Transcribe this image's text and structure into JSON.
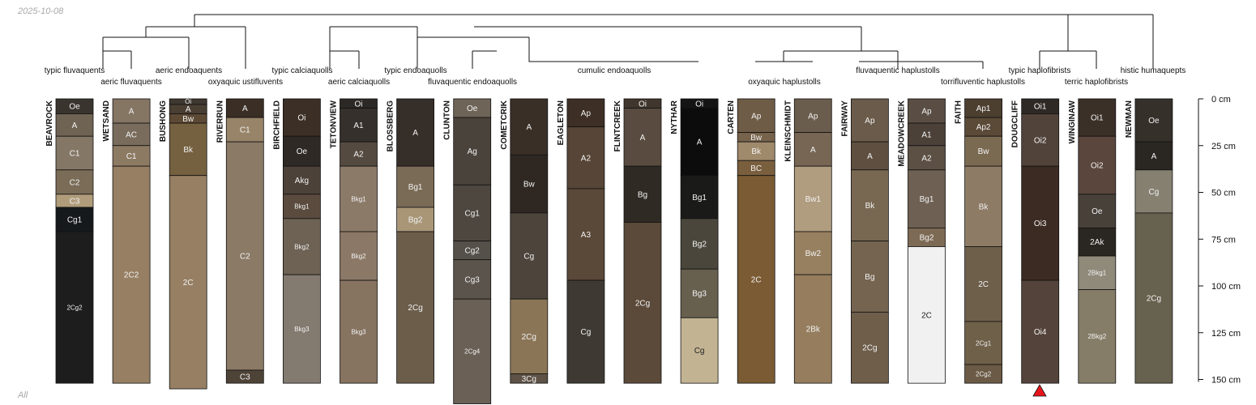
{
  "header": {
    "date": "2025-10-08"
  },
  "footer": {
    "label": "All"
  },
  "depth_axis": {
    "unit": "cm",
    "max_depth": 150,
    "ticks": [
      0,
      25,
      50,
      75,
      100,
      125,
      150
    ]
  },
  "taxonomy": {
    "typic_fluvaquents": "typic fluvaquents",
    "aeric_fluvaquents": "aeric fluvaquents",
    "aeric_endoaquents": "aeric endoaquents",
    "oxyaquic_ustifluvents": "oxyaquic ustifluvents",
    "typic_calciaquolls": "typic calciaquolls",
    "aeric_calciaquolls": "aeric calciaquolls",
    "typic_endoaquolls": "typic endoaquolls",
    "fluvaquentic_endoaquolls": "fluvaquentic endoaquolls",
    "cumulic_endoaquolls": "cumulic endoaquolls",
    "oxyaquic_haplustolls": "oxyaquic haplustolls",
    "fluvaquentic_haplustolls": "fluvaquentic haplustolls",
    "torrifluventic_haplustolls": "torrifluventic haplustolls",
    "typic_haplofibrists": "typic haplofibrists",
    "terric_haplofibrists": "terric haplofibrists",
    "histic_humaquepts": "histic humaquepts"
  },
  "marker": {
    "profile": "DOUGCLIFF",
    "color": "#e8141b"
  },
  "profiles": [
    {
      "name": "BEAVROCK",
      "horizons": [
        {
          "name": "Oe",
          "top": 0,
          "bottom": 8,
          "color": "#3a342f"
        },
        {
          "name": "A",
          "top": 8,
          "bottom": 20,
          "color": "#6f6454"
        },
        {
          "name": "C1",
          "top": 20,
          "bottom": 38,
          "color": "#857766"
        },
        {
          "name": "C2",
          "top": 38,
          "bottom": 51,
          "color": "#7a6c57"
        },
        {
          "name": "C3",
          "top": 51,
          "bottom": 58,
          "color": "#b09c7a"
        },
        {
          "name": "Cg1",
          "top": 58,
          "bottom": 71,
          "color": "#16191c"
        },
        {
          "name": "2Cg2",
          "top": 71,
          "bottom": 152,
          "color": "#1c1d1c"
        }
      ]
    },
    {
      "name": "WETSAND",
      "horizons": [
        {
          "name": "A",
          "top": 0,
          "bottom": 13,
          "color": "#857563"
        },
        {
          "name": "AC",
          "top": 13,
          "bottom": 25,
          "color": "#7a6c5c"
        },
        {
          "name": "C1",
          "top": 25,
          "bottom": 36,
          "color": "#8d7a63"
        },
        {
          "name": "2C2",
          "top": 36,
          "bottom": 152,
          "color": "#977f63"
        }
      ]
    },
    {
      "name": "BUSHONG",
      "horizons": [
        {
          "name": "Oi",
          "top": 0,
          "bottom": 3,
          "color": "#3f3830"
        },
        {
          "name": "A",
          "top": 3,
          "bottom": 8,
          "color": "#4a3f33"
        },
        {
          "name": "Bw",
          "top": 8,
          "bottom": 13,
          "color": "#5d4a35"
        },
        {
          "name": "Bk",
          "top": 13,
          "bottom": 41,
          "color": "#75603f"
        },
        {
          "name": "2C",
          "top": 41,
          "bottom": 155,
          "color": "#977f63"
        }
      ]
    },
    {
      "name": "RIVERRUN",
      "horizons": [
        {
          "name": "A",
          "top": 0,
          "bottom": 10,
          "color": "#3b2e24"
        },
        {
          "name": "C1",
          "top": 10,
          "bottom": 23,
          "color": "#988569"
        },
        {
          "name": "C2",
          "top": 23,
          "bottom": 145,
          "color": "#8b7a66"
        },
        {
          "name": "C3",
          "top": 145,
          "bottom": 152,
          "color": "#4e4337"
        }
      ]
    },
    {
      "name": "BIRCHFIELD",
      "horizons": [
        {
          "name": "Oi",
          "top": 0,
          "bottom": 20,
          "color": "#3c2f25"
        },
        {
          "name": "Oe",
          "top": 20,
          "bottom": 36,
          "color": "#2e2925"
        },
        {
          "name": "Akg",
          "top": 36,
          "bottom": 51,
          "color": "#4c4239"
        },
        {
          "name": "Bkg1",
          "top": 51,
          "bottom": 64,
          "color": "#5a4b3e"
        },
        {
          "name": "Bkg2",
          "top": 64,
          "bottom": 94,
          "color": "#6d6253"
        },
        {
          "name": "Bkg3",
          "top": 94,
          "bottom": 152,
          "color": "#837a70"
        }
      ]
    },
    {
      "name": "TETONVIEW",
      "horizons": [
        {
          "name": "Oi",
          "top": 0,
          "bottom": 5,
          "color": "#2c2825"
        },
        {
          "name": "A1",
          "top": 5,
          "bottom": 23,
          "color": "#35302b"
        },
        {
          "name": "A2",
          "top": 23,
          "bottom": 36,
          "color": "#544a40"
        },
        {
          "name": "Bkg1",
          "top": 36,
          "bottom": 71,
          "color": "#8c7a69"
        },
        {
          "name": "Bkg2",
          "top": 71,
          "bottom": 97,
          "color": "#8b7866"
        },
        {
          "name": "Bkg3",
          "top": 97,
          "bottom": 152,
          "color": "#867360"
        }
      ]
    },
    {
      "name": "BLOSSBERG",
      "horizons": [
        {
          "name": "A",
          "top": 0,
          "bottom": 36,
          "color": "#362e28"
        },
        {
          "name": "Bg1",
          "top": 36,
          "bottom": 58,
          "color": "#7a6b56"
        },
        {
          "name": "Bg2",
          "top": 58,
          "bottom": 71,
          "color": "#a89677"
        },
        {
          "name": "2Cg",
          "top": 71,
          "bottom": 152,
          "color": "#6c5d4b"
        }
      ]
    },
    {
      "name": "CLUNTON",
      "horizons": [
        {
          "name": "Oe",
          "top": 0,
          "bottom": 10,
          "color": "#6e6457"
        },
        {
          "name": "Ag",
          "top": 10,
          "bottom": 46,
          "color": "#4a433b"
        },
        {
          "name": "Cg1",
          "top": 46,
          "bottom": 76,
          "color": "#4d473f"
        },
        {
          "name": "Cg2",
          "top": 76,
          "bottom": 86,
          "color": "#55504a"
        },
        {
          "name": "Cg3",
          "top": 86,
          "bottom": 107,
          "color": "#5b544c"
        },
        {
          "name": "2Cg4",
          "top": 107,
          "bottom": 163,
          "color": "#6a6056"
        }
      ]
    },
    {
      "name": "COMETCRIK",
      "horizons": [
        {
          "name": "A",
          "top": 0,
          "bottom": 30,
          "color": "#3a2f27"
        },
        {
          "name": "Bw",
          "top": 30,
          "bottom": 61,
          "color": "#2f2822"
        },
        {
          "name": "Cg",
          "top": 61,
          "bottom": 107,
          "color": "#4d443c"
        },
        {
          "name": "2Cg",
          "top": 107,
          "bottom": 147,
          "color": "#8b7557"
        },
        {
          "name": "3Cg",
          "top": 147,
          "bottom": 152,
          "color": "#5e5246"
        }
      ]
    },
    {
      "name": "EAGLETON",
      "horizons": [
        {
          "name": "Ap",
          "top": 0,
          "bottom": 15,
          "color": "#3d2f25"
        },
        {
          "name": "A2",
          "top": 15,
          "bottom": 48,
          "color": "#574637"
        },
        {
          "name": "A3",
          "top": 48,
          "bottom": 97,
          "color": "#5a4838"
        },
        {
          "name": "Cg",
          "top": 97,
          "bottom": 152,
          "color": "#3e3a33"
        }
      ]
    },
    {
      "name": "FLINTCREEK",
      "horizons": [
        {
          "name": "Oi",
          "top": 0,
          "bottom": 5,
          "color": "#40362d"
        },
        {
          "name": "A",
          "top": 5,
          "bottom": 36,
          "color": "#594b3f"
        },
        {
          "name": "Bg",
          "top": 36,
          "bottom": 66,
          "color": "#302a25"
        },
        {
          "name": "2Cg",
          "top": 66,
          "bottom": 152,
          "color": "#5b4a39"
        }
      ]
    },
    {
      "name": "NYTHAR",
      "horizons": [
        {
          "name": "Oi",
          "top": 0,
          "bottom": 5,
          "color": "#141414"
        },
        {
          "name": "A",
          "top": 5,
          "bottom": 41,
          "color": "#0c0c0c"
        },
        {
          "name": "Bg1",
          "top": 41,
          "bottom": 64,
          "color": "#1a1a18"
        },
        {
          "name": "Bg2",
          "top": 64,
          "bottom": 91,
          "color": "#4a463c"
        },
        {
          "name": "Bg3",
          "top": 91,
          "bottom": 117,
          "color": "#67604f"
        },
        {
          "name": "Cg",
          "top": 117,
          "bottom": 152,
          "color": "#c2b393"
        }
      ]
    },
    {
      "name": "CARTEN",
      "horizons": [
        {
          "name": "Ap",
          "top": 0,
          "bottom": 18,
          "color": "#6f5c47"
        },
        {
          "name": "Bw",
          "top": 18,
          "bottom": 23,
          "color": "#77634b"
        },
        {
          "name": "Bk",
          "top": 23,
          "bottom": 33,
          "color": "#a08a6c"
        },
        {
          "name": "BC",
          "top": 33,
          "bottom": 41,
          "color": "#7a5f3f"
        },
        {
          "name": "2C",
          "top": 41,
          "bottom": 152,
          "color": "#7a5b33"
        }
      ]
    },
    {
      "name": "KLEINSCHMIDT",
      "horizons": [
        {
          "name": "Ap",
          "top": 0,
          "bottom": 18,
          "color": "#6b5d4d"
        },
        {
          "name": "A",
          "top": 18,
          "bottom": 36,
          "color": "#776654"
        },
        {
          "name": "Bw1",
          "top": 36,
          "bottom": 71,
          "color": "#b09c7f"
        },
        {
          "name": "Bw2",
          "top": 71,
          "bottom": 94,
          "color": "#97805f"
        },
        {
          "name": "2Bk",
          "top": 94,
          "bottom": 152,
          "color": "#957d5d"
        }
      ]
    },
    {
      "name": "FAIRWAY",
      "horizons": [
        {
          "name": "Ap",
          "top": 0,
          "bottom": 23,
          "color": "#6a5b4a"
        },
        {
          "name": "A",
          "top": 23,
          "bottom": 38,
          "color": "#5e4f40"
        },
        {
          "name": "Bk",
          "top": 38,
          "bottom": 76,
          "color": "#786852"
        },
        {
          "name": "Bg",
          "top": 76,
          "bottom": 114,
          "color": "#746450"
        },
        {
          "name": "2Cg",
          "top": 114,
          "bottom": 152,
          "color": "#6e5e4a"
        }
      ]
    },
    {
      "name": "MEADOWCREEK",
      "horizons": [
        {
          "name": "Ap",
          "top": 0,
          "bottom": 13,
          "color": "#5a4e44"
        },
        {
          "name": "A1",
          "top": 13,
          "bottom": 25,
          "color": "#4c4139"
        },
        {
          "name": "A2",
          "top": 25,
          "bottom": 38,
          "color": "#5c5045"
        },
        {
          "name": "Bg1",
          "top": 38,
          "bottom": 69,
          "color": "#6e6053"
        },
        {
          "name": "Bg2",
          "top": 69,
          "bottom": 79,
          "color": "#7d6a55"
        },
        {
          "name": "2C",
          "top": 79,
          "bottom": 152,
          "color": "#f1f1f1"
        }
      ]
    },
    {
      "name": "FAITH",
      "horizons": [
        {
          "name": "Ap1",
          "top": 0,
          "bottom": 10,
          "color": "#4c3f30"
        },
        {
          "name": "Ap2",
          "top": 10,
          "bottom": 20,
          "color": "#5a4a37"
        },
        {
          "name": "Bw",
          "top": 20,
          "bottom": 36,
          "color": "#7b6a52"
        },
        {
          "name": "Bk",
          "top": 36,
          "bottom": 79,
          "color": "#8e7b66"
        },
        {
          "name": "2C",
          "top": 79,
          "bottom": 119,
          "color": "#6e5f4b"
        },
        {
          "name": "2Cg1",
          "top": 119,
          "bottom": 142,
          "color": "#6f6049"
        },
        {
          "name": "2Cg2",
          "top": 142,
          "bottom": 152,
          "color": "#6b5a45"
        }
      ]
    },
    {
      "name": "DOUGCLIFF",
      "horizons": [
        {
          "name": "Oi1",
          "top": 0,
          "bottom": 8,
          "color": "#2f2925"
        },
        {
          "name": "Oi2",
          "top": 8,
          "bottom": 36,
          "color": "#51433a"
        },
        {
          "name": "Oi3",
          "top": 36,
          "bottom": 97,
          "color": "#3c2b23"
        },
        {
          "name": "Oi4",
          "top": 97,
          "bottom": 152,
          "color": "#54433a"
        }
      ]
    },
    {
      "name": "WINGINAW",
      "horizons": [
        {
          "name": "Oi1",
          "top": 0,
          "bottom": 20,
          "color": "#3b3028"
        },
        {
          "name": "Oi2",
          "top": 20,
          "bottom": 51,
          "color": "#5a463c"
        },
        {
          "name": "Oe",
          "top": 51,
          "bottom": 69,
          "color": "#48413a"
        },
        {
          "name": "2Ak",
          "top": 69,
          "bottom": 84,
          "color": "#2a2621"
        },
        {
          "name": "2Bkg1",
          "top": 84,
          "bottom": 102,
          "color": "#908a7b"
        },
        {
          "name": "2Bkg2",
          "top": 102,
          "bottom": 152,
          "color": "#867d68"
        }
      ]
    },
    {
      "name": "NEWMAN",
      "horizons": [
        {
          "name": "Oe",
          "top": 0,
          "bottom": 23,
          "color": "#36302b"
        },
        {
          "name": "A",
          "top": 23,
          "bottom": 38,
          "color": "#2a2723"
        },
        {
          "name": "Cg",
          "top": 38,
          "bottom": 61,
          "color": "#858070"
        },
        {
          "name": "2Cg",
          "top": 61,
          "bottom": 152,
          "color": "#67614f"
        }
      ]
    }
  ]
}
